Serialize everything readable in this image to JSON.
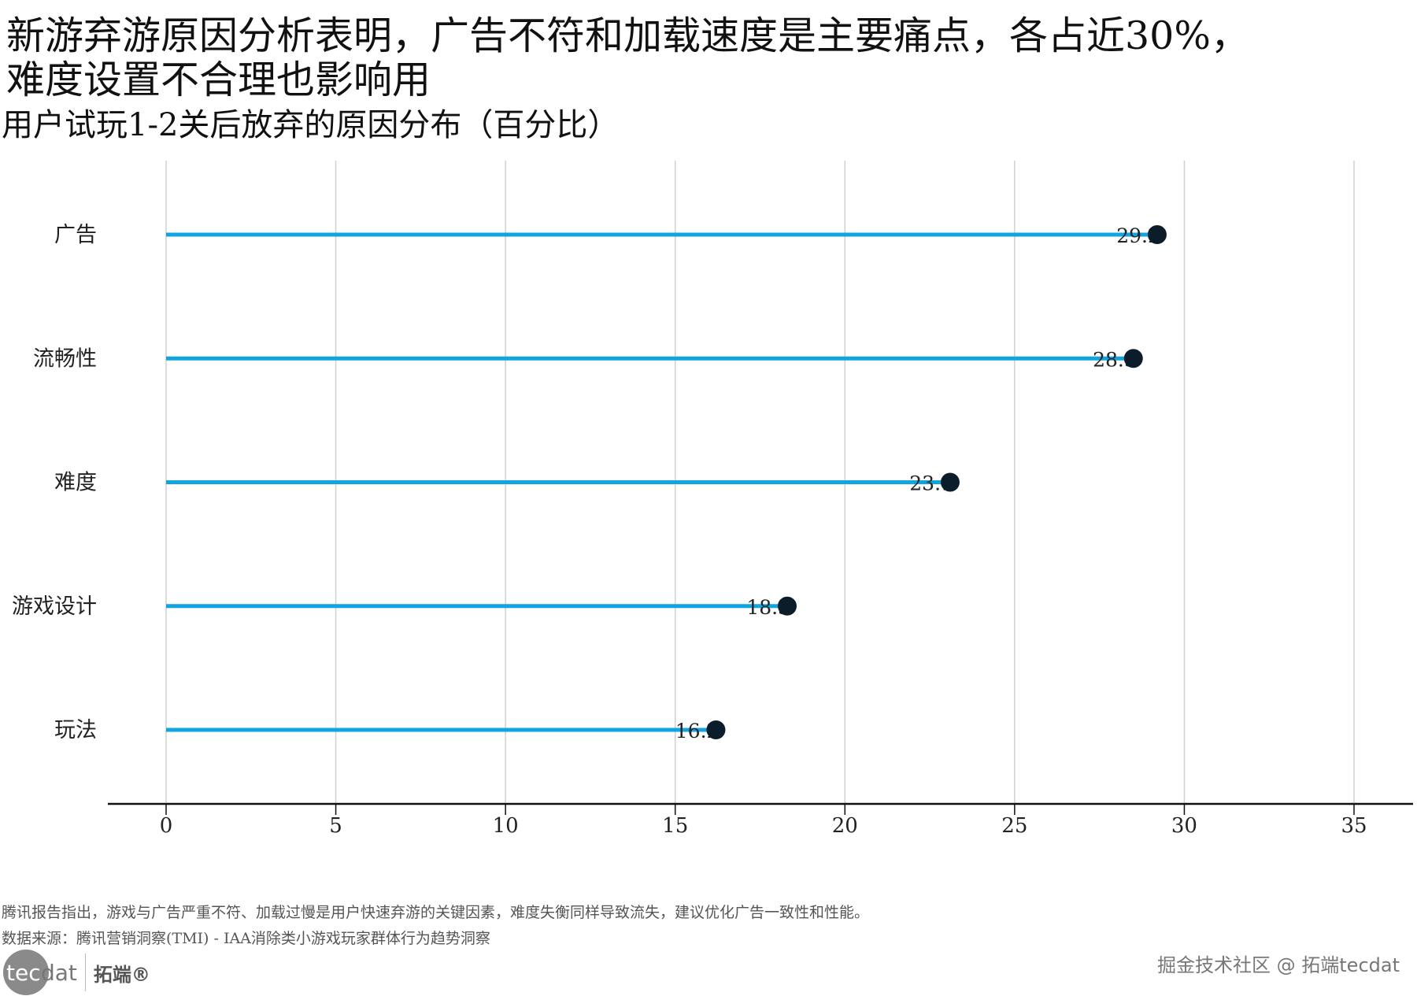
{
  "title_line1": "新游弃游原因分析表明，广告不符和加载速度是主要痛点，各占近30%，",
  "title_line2": "难度设置不合理也影响用",
  "chart_data": {
    "type": "lollipop",
    "title": "新游弃游原因分析表明，广告不符和加载速度是主要痛点，各占近30%，难度设置不合理也影响用",
    "subtitle": "用户试玩1-2关后放弃的原因分布（百分比）",
    "categories": [
      "广告",
      "流畅性",
      "难度",
      "游戏设计",
      "玩法"
    ],
    "values": [
      29.2,
      28.5,
      23.1,
      18.3,
      16.2
    ],
    "value_labels": [
      "29.2",
      "28.5",
      "23.1",
      "18.3",
      "16.2"
    ],
    "xlim": [
      0,
      35
    ],
    "xticks": [
      "0",
      "5",
      "10",
      "15",
      "20",
      "25",
      "30",
      "35"
    ],
    "xlabel": "",
    "ylabel": "",
    "grid": "vertical",
    "colors": {
      "stem": "#0ea5e0",
      "dot": "#0b1c2a",
      "grid": "#d0d0d0",
      "axis": "#111111"
    }
  },
  "footer": {
    "note": "腾讯报告指出，游戏与广告严重不符、加载过慢是用户快速弃游的关键因素，难度失衡同样导致流失，建议优化广告一致性和性能。",
    "source": "数据来源：腾讯营销洞察(TMI) - IAA消除类小游戏玩家群体行为趋势洞察",
    "logo_tec": "tec",
    "logo_dat": "dat",
    "logo_cn": "拓端®",
    "watermark": "掘金技术社区 @ 拓端tecdat"
  }
}
